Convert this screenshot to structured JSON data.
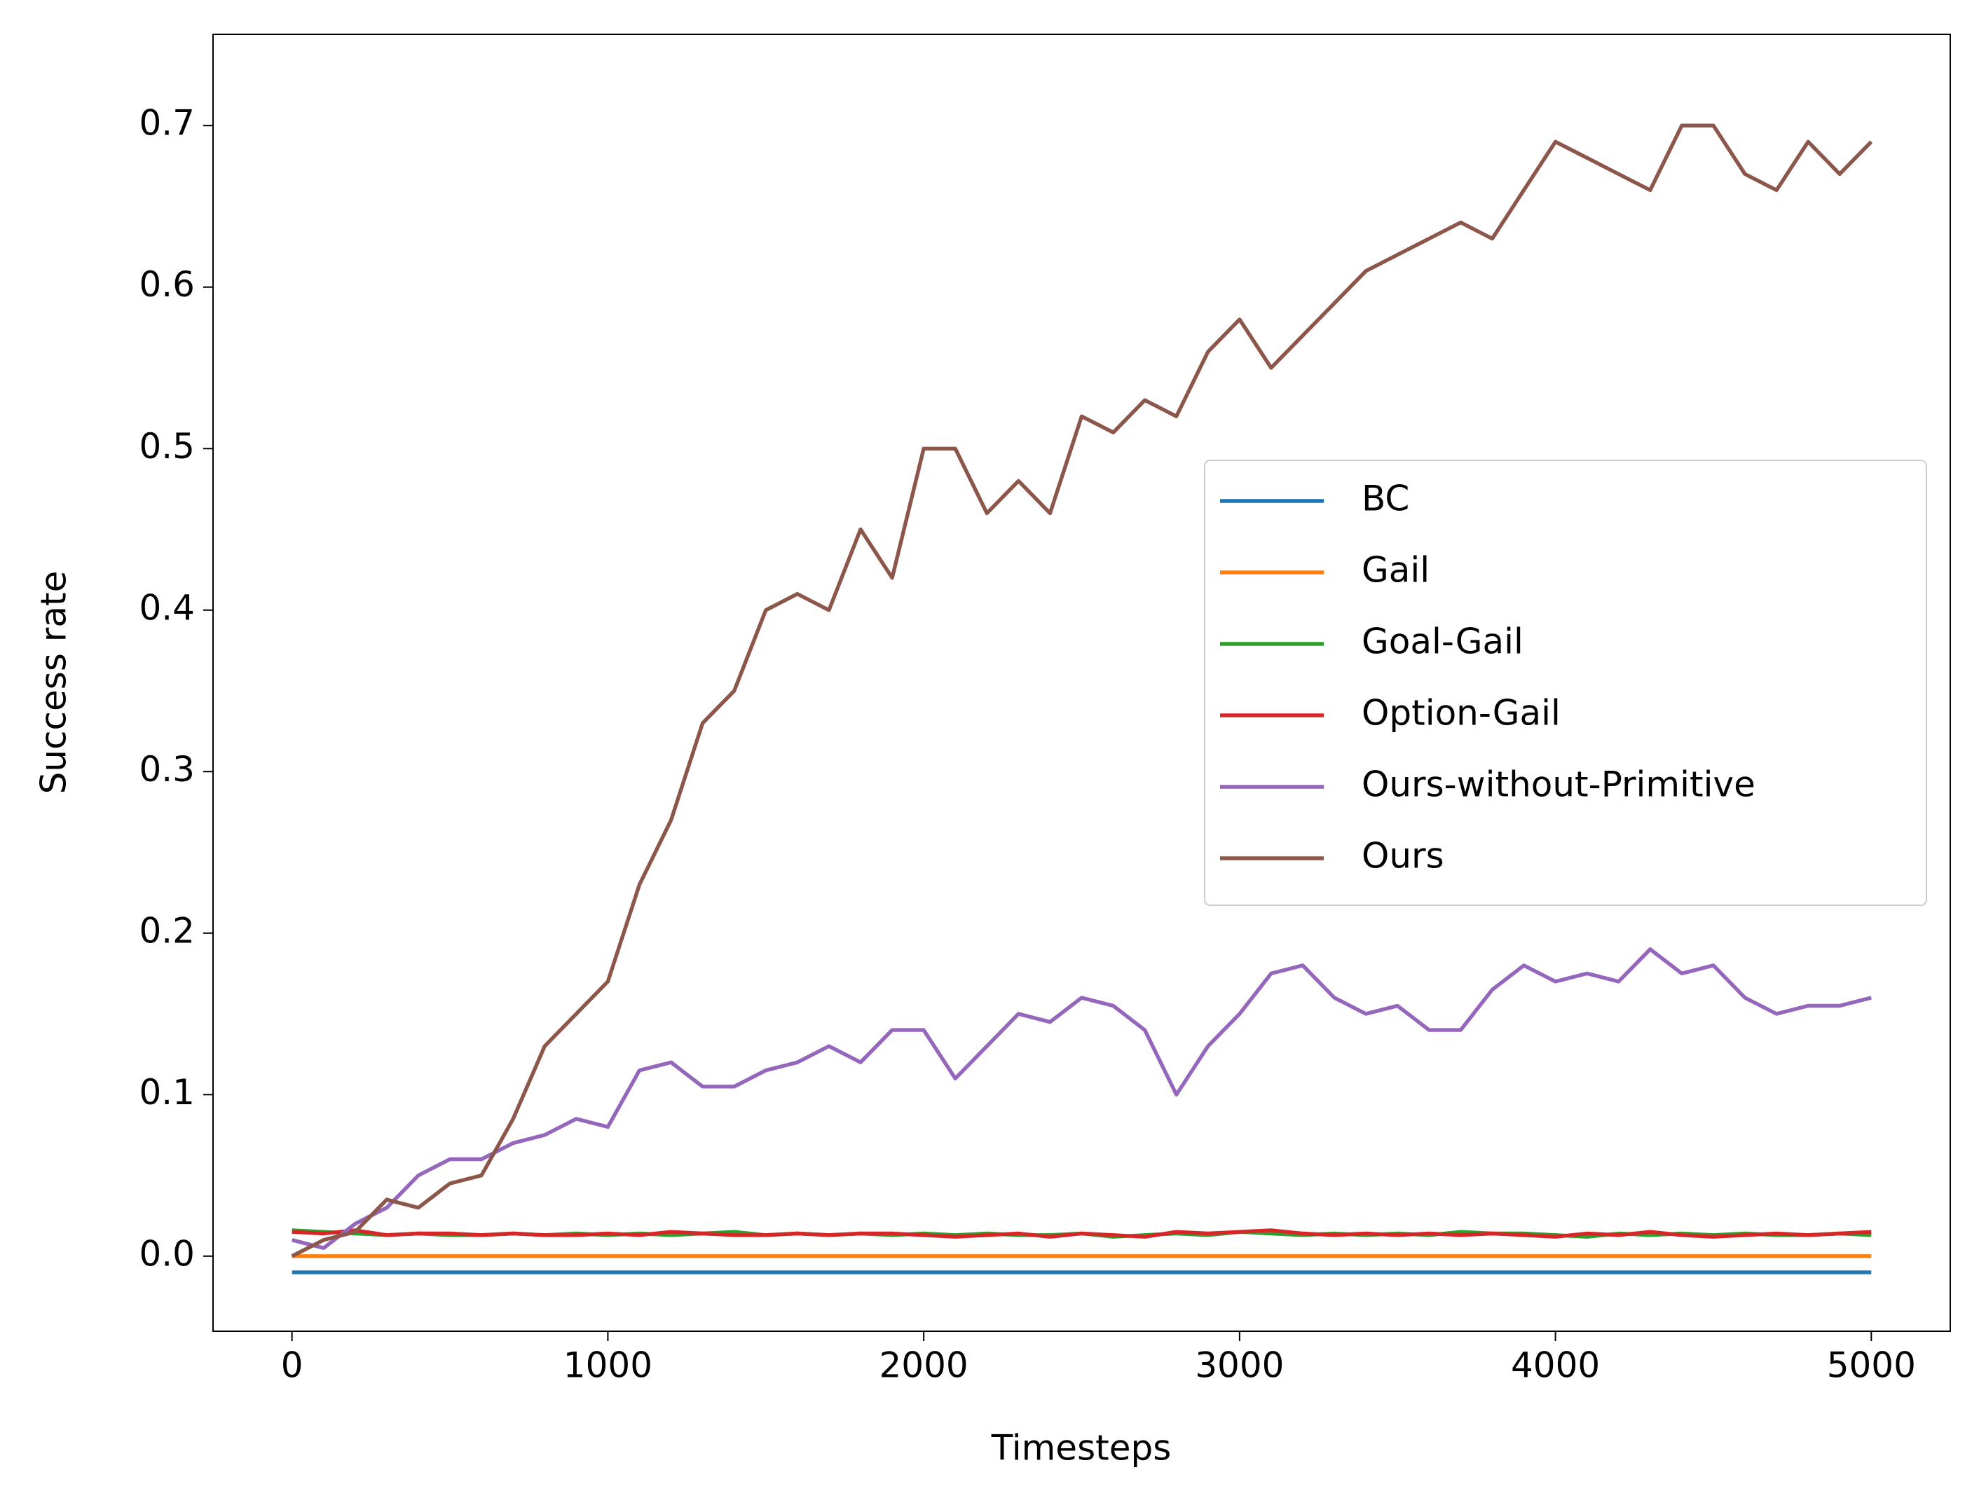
{
  "chart_data": {
    "type": "line",
    "xlabel": "Timesteps",
    "ylabel": "Success rate",
    "x": [
      0,
      100,
      200,
      300,
      400,
      500,
      600,
      700,
      800,
      900,
      1000,
      1100,
      1200,
      1300,
      1400,
      1500,
      1600,
      1700,
      1800,
      1900,
      2000,
      2100,
      2200,
      2300,
      2400,
      2500,
      2600,
      2700,
      2800,
      2900,
      3000,
      3100,
      3200,
      3300,
      3400,
      3500,
      3600,
      3700,
      3800,
      3900,
      4000,
      4100,
      4200,
      4300,
      4400,
      4500,
      4600,
      4700,
      4800,
      4900,
      5000
    ],
    "series": [
      {
        "name": "BC",
        "color": "#1f77b4",
        "values": [
          -0.01,
          -0.01,
          -0.01,
          -0.01,
          -0.01,
          -0.01,
          -0.01,
          -0.01,
          -0.01,
          -0.01,
          -0.01,
          -0.01,
          -0.01,
          -0.01,
          -0.01,
          -0.01,
          -0.01,
          -0.01,
          -0.01,
          -0.01,
          -0.01,
          -0.01,
          -0.01,
          -0.01,
          -0.01,
          -0.01,
          -0.01,
          -0.01,
          -0.01,
          -0.01,
          -0.01,
          -0.01,
          -0.01,
          -0.01,
          -0.01,
          -0.01,
          -0.01,
          -0.01,
          -0.01,
          -0.01,
          -0.01,
          -0.01,
          -0.01,
          -0.01,
          -0.01,
          -0.01,
          -0.01,
          -0.01,
          -0.01,
          -0.01,
          -0.01
        ]
      },
      {
        "name": "Gail",
        "color": "#ff7f0e",
        "values": [
          0,
          0,
          0,
          0,
          0,
          0,
          0,
          0,
          0,
          0,
          0,
          0,
          0,
          0,
          0,
          0,
          0,
          0,
          0,
          0,
          0,
          0,
          0,
          0,
          0,
          0,
          0,
          0,
          0,
          0,
          0,
          0,
          0,
          0,
          0,
          0,
          0,
          0,
          0,
          0,
          0,
          0,
          0,
          0,
          0,
          0,
          0,
          0,
          0,
          0,
          0
        ]
      },
      {
        "name": "Goal-Gail",
        "color": "#2ca02c",
        "values": [
          0.016,
          0.015,
          0.014,
          0.013,
          0.014,
          0.013,
          0.013,
          0.014,
          0.013,
          0.014,
          0.013,
          0.014,
          0.013,
          0.014,
          0.015,
          0.013,
          0.014,
          0.013,
          0.014,
          0.013,
          0.014,
          0.013,
          0.014,
          0.013,
          0.013,
          0.014,
          0.012,
          0.013,
          0.014,
          0.013,
          0.015,
          0.014,
          0.013,
          0.014,
          0.013,
          0.014,
          0.013,
          0.015,
          0.014,
          0.014,
          0.013,
          0.012,
          0.014,
          0.013,
          0.014,
          0.013,
          0.014,
          0.013,
          0.013,
          0.014,
          0.013
        ]
      },
      {
        "name": "Option-Gail",
        "color": "#d62728",
        "values": [
          0.015,
          0.014,
          0.016,
          0.013,
          0.014,
          0.014,
          0.013,
          0.014,
          0.013,
          0.013,
          0.014,
          0.013,
          0.015,
          0.014,
          0.013,
          0.013,
          0.014,
          0.013,
          0.014,
          0.014,
          0.013,
          0.012,
          0.013,
          0.014,
          0.012,
          0.014,
          0.013,
          0.012,
          0.015,
          0.014,
          0.015,
          0.016,
          0.014,
          0.013,
          0.014,
          0.013,
          0.014,
          0.013,
          0.014,
          0.013,
          0.012,
          0.014,
          0.013,
          0.015,
          0.013,
          0.012,
          0.013,
          0.014,
          0.013,
          0.014,
          0.015
        ]
      },
      {
        "name": "Ours-without-Primitive",
        "color": "#9467bd",
        "values": [
          0.01,
          0.005,
          0.02,
          0.03,
          0.05,
          0.06,
          0.06,
          0.07,
          0.075,
          0.085,
          0.08,
          0.115,
          0.12,
          0.105,
          0.105,
          0.115,
          0.12,
          0.13,
          0.12,
          0.14,
          0.14,
          0.11,
          0.13,
          0.15,
          0.145,
          0.16,
          0.155,
          0.14,
          0.1,
          0.13,
          0.15,
          0.175,
          0.18,
          0.16,
          0.15,
          0.155,
          0.14,
          0.14,
          0.165,
          0.18,
          0.17,
          0.175,
          0.17,
          0.19,
          0.175,
          0.18,
          0.16,
          0.15,
          0.155,
          0.155,
          0.16
        ]
      },
      {
        "name": "Ours",
        "color": "#8c564b",
        "values": [
          0.0,
          0.01,
          0.015,
          0.035,
          0.03,
          0.045,
          0.05,
          0.085,
          0.13,
          0.15,
          0.17,
          0.23,
          0.27,
          0.33,
          0.35,
          0.4,
          0.41,
          0.4,
          0.45,
          0.42,
          0.5,
          0.5,
          0.46,
          0.48,
          0.46,
          0.52,
          0.51,
          0.53,
          0.52,
          0.56,
          0.58,
          0.55,
          0.57,
          0.59,
          0.61,
          0.62,
          0.63,
          0.64,
          0.63,
          0.66,
          0.69,
          0.68,
          0.67,
          0.66,
          0.7,
          0.7,
          0.67,
          0.66,
          0.69,
          0.67,
          0.69
        ]
      }
    ],
    "xlim": [
      -250,
      5250
    ],
    "ylim": [
      -0.0465,
      0.7565
    ],
    "xticks": [
      0,
      1000,
      2000,
      3000,
      4000,
      5000
    ],
    "yticks": [
      {
        "value": 0,
        "label": "0.0"
      },
      0.1,
      0.2,
      0.3,
      0.4,
      0.5,
      0.6,
      0.7
    ],
    "legend": "center right",
    "grid": false
  }
}
